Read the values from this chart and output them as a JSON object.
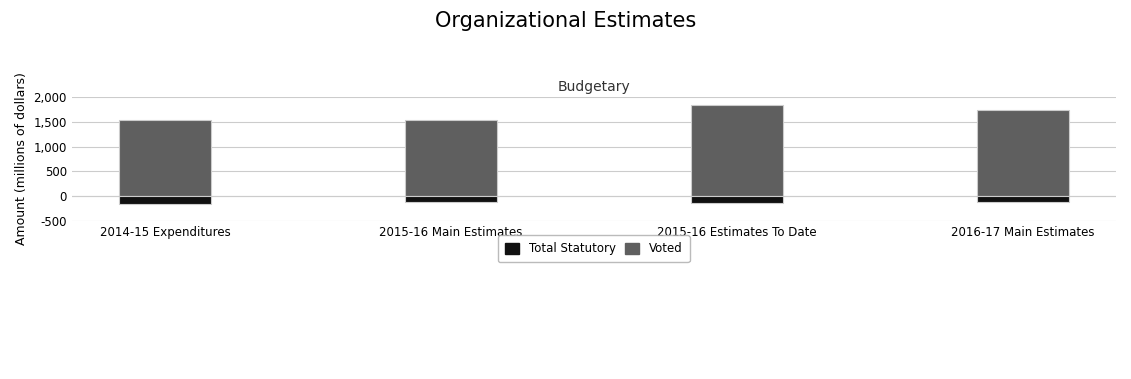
{
  "title": "Organizational Estimates",
  "subtitle": "Budgetary",
  "categories": [
    "2014-15 Expenditures",
    "2015-16 Main Estimates",
    "2015-16 Estimates To Date",
    "2016-17 Main Estimates"
  ],
  "voted_values": [
    1530,
    1540,
    1840,
    1740
  ],
  "statutory_values": [
    -150,
    -120,
    -130,
    -115
  ],
  "voted_color": "#5f5f5f",
  "statutory_color": "#111111",
  "bar_edge_color": "#cccccc",
  "background_color": "#ffffff",
  "plot_bg_color": "#ffffff",
  "ylabel": "Amount (millions of dollars)",
  "ylim": [
    -500,
    2000
  ],
  "yticks": [
    -500,
    0,
    500,
    1000,
    1500,
    2000
  ],
  "title_fontsize": 15,
  "subtitle_fontsize": 10,
  "axis_label_fontsize": 9,
  "tick_fontsize": 8.5,
  "legend_labels": [
    "Total Statutory",
    "Voted"
  ],
  "bar_width": 0.32,
  "grid_color": "#cccccc",
  "font_family": "sans-serif"
}
